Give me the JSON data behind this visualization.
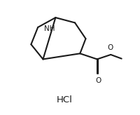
{
  "bg_color": "#ffffff",
  "line_color": "#1a1a1a",
  "line_width": 1.5,
  "text_color": "#1a1a1a",
  "NH_label": "NH",
  "O_carbonyl": "O",
  "O_ether": "O",
  "HCl_label": "HCl",
  "font_size_labels": 7.5,
  "font_size_hcl": 9.5,
  "xlim": [
    0,
    10
  ],
  "ylim": [
    0,
    10
  ],
  "figw": 2.01,
  "figh": 1.64,
  "dpi": 100
}
